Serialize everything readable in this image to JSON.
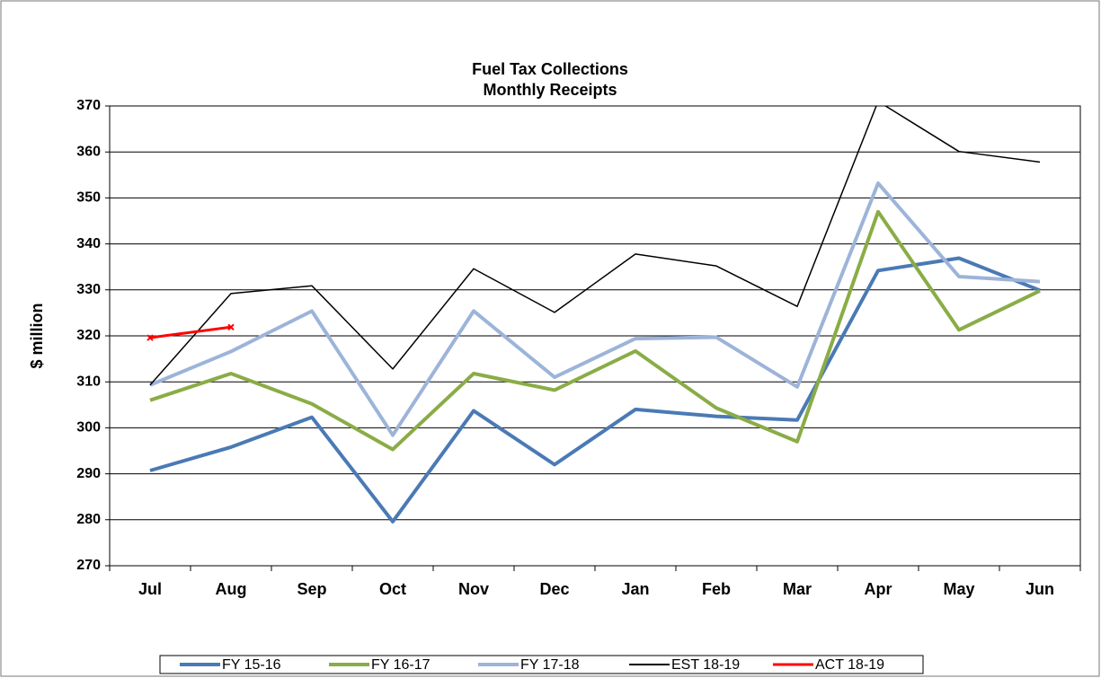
{
  "chart_data": {
    "type": "line",
    "title": "Fuel Tax Collections",
    "subtitle": "Monthly Receipts",
    "y_label": "$ million",
    "categories": [
      "Jul",
      "Aug",
      "Sep",
      "Oct",
      "Nov",
      "Dec",
      "Jan",
      "Feb",
      "Mar",
      "Apr",
      "May",
      "Jun"
    ],
    "series": [
      {
        "name": "FY 15-16",
        "color": "#4a7ab5",
        "values": [
          290.7,
          295.8,
          302.3,
          279.6,
          303.7,
          292,
          304,
          302.5,
          301.7,
          334.2,
          336.9,
          329.9
        ]
      },
      {
        "name": "FY 16-17",
        "color": "#8aac46",
        "values": [
          306,
          311.8,
          305.2,
          295.3,
          311.8,
          308.2,
          316.7,
          304.3,
          297,
          347,
          321.3,
          329.8
        ]
      },
      {
        "name": "FY 17-18",
        "color": "#9db4d9",
        "values": [
          309.3,
          316.6,
          325.4,
          298.4,
          325.4,
          311,
          319.4,
          319.7,
          308.9,
          353.2,
          332.9,
          331.8
        ]
      },
      {
        "name": "EST 18-19",
        "color": "#000000",
        "values": [
          309.3,
          329.2,
          330.9,
          312.8,
          334.6,
          325.1,
          337.8,
          335.2,
          326.4,
          371,
          360.1,
          357.8
        ]
      },
      {
        "name": "ACT 18-19",
        "color": "#ff0000",
        "values": [
          319.6,
          321.9,
          null,
          null,
          null,
          null,
          null,
          null,
          null,
          null,
          null,
          null
        ]
      }
    ],
    "ylim": [
      270,
      370
    ],
    "yticks": [
      270,
      280,
      290,
      300,
      310,
      320,
      330,
      340,
      350,
      360,
      370
    ],
    "grid": true,
    "legend": "bottom"
  }
}
